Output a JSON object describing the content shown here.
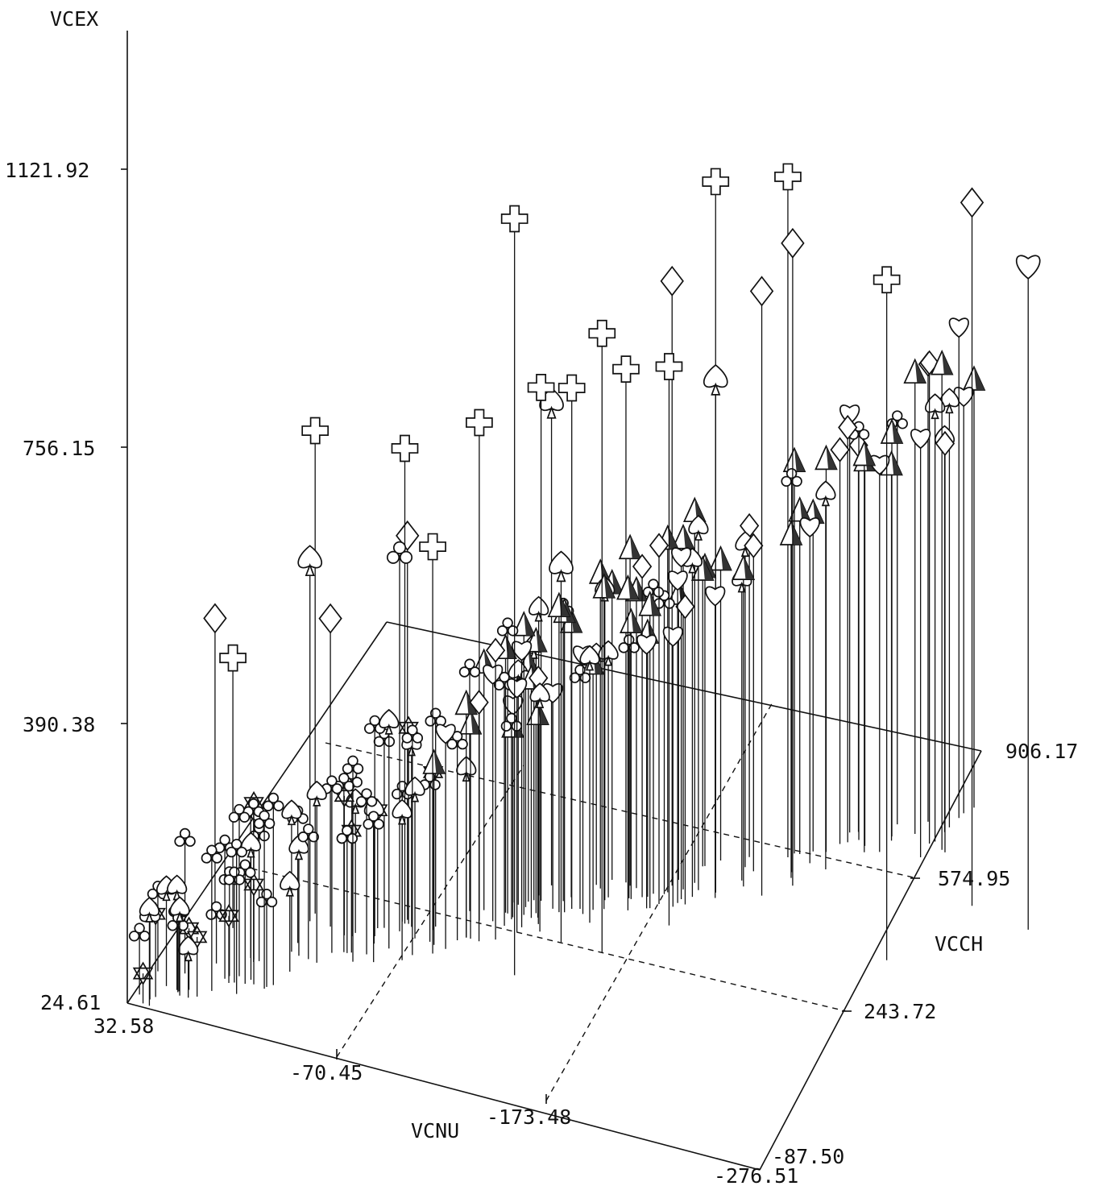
{
  "chart_data": {
    "type": "scatter",
    "subtype": "3d-needle",
    "axes": {
      "z": {
        "label": "VCEX",
        "ticks": [
          "24.61",
          "390.38",
          "756.15",
          "1121.92"
        ]
      },
      "x": {
        "label": "VCNU",
        "ticks": [
          "32.58",
          "-70.45",
          "-173.48",
          "-276.51"
        ]
      },
      "y": {
        "label": "VCCH",
        "ticks": [
          "-87.50",
          "243.72",
          "574.95",
          "906.17"
        ]
      }
    },
    "grid": false,
    "symbols": [
      "club",
      "spade",
      "heart",
      "diamond",
      "cross",
      "star",
      "pyramid"
    ],
    "points": [
      {
        "s": "cross",
        "x": -120,
        "y": 200,
        "z": 1020
      },
      {
        "s": "cross",
        "x": -180,
        "y": 500,
        "z": 960
      },
      {
        "s": "cross",
        "x": -200,
        "y": 620,
        "z": 920
      },
      {
        "s": "cross",
        "x": -270,
        "y": 450,
        "z": 920
      },
      {
        "s": "cross",
        "x": -150,
        "y": 300,
        "z": 840
      },
      {
        "s": "cross",
        "x": -170,
        "y": 400,
        "z": 760
      },
      {
        "s": "cross",
        "x": -20,
        "y": 220,
        "z": 660
      },
      {
        "s": "cross",
        "x": -60,
        "y": 250,
        "z": 650
      },
      {
        "s": "cross",
        "x": -90,
        "y": 300,
        "z": 680
      },
      {
        "s": "cross",
        "x": -110,
        "y": 380,
        "z": 700
      },
      {
        "s": "cross",
        "x": -125,
        "y": 380,
        "z": 710
      },
      {
        "s": "cross",
        "x": -140,
        "y": 470,
        "z": 700
      },
      {
        "s": "cross",
        "x": -80,
        "y": 200,
        "z": 560
      },
      {
        "s": "cross",
        "x": 10,
        "y": 140,
        "z": 380
      },
      {
        "s": "diamond",
        "x": -290,
        "y": 620,
        "z": 950
      },
      {
        "s": "diamond",
        "x": -210,
        "y": 560,
        "z": 870
      },
      {
        "s": "diamond",
        "x": -160,
        "y": 490,
        "z": 820
      },
      {
        "s": "diamond",
        "x": -200,
        "y": 520,
        "z": 820
      },
      {
        "s": "diamond",
        "x": -60,
        "y": 260,
        "z": 530
      },
      {
        "s": "diamond",
        "x": 20,
        "y": 150,
        "z": 420
      },
      {
        "s": "diamond",
        "x": -30,
        "y": 200,
        "z": 430
      },
      {
        "s": "heart",
        "x": -320,
        "y": 600,
        "z": 900
      },
      {
        "s": "spade",
        "x": -130,
        "y": 300,
        "z": 520
      },
      {
        "s": "spade",
        "x": -20,
        "y": 200,
        "z": 500
      },
      {
        "s": "spade",
        "x": -110,
        "y": 420,
        "z": 660
      },
      {
        "s": "spade",
        "x": -180,
        "y": 500,
        "z": 700
      },
      {
        "s": "club",
        "x": -60,
        "y": 230,
        "z": 520
      }
    ]
  }
}
